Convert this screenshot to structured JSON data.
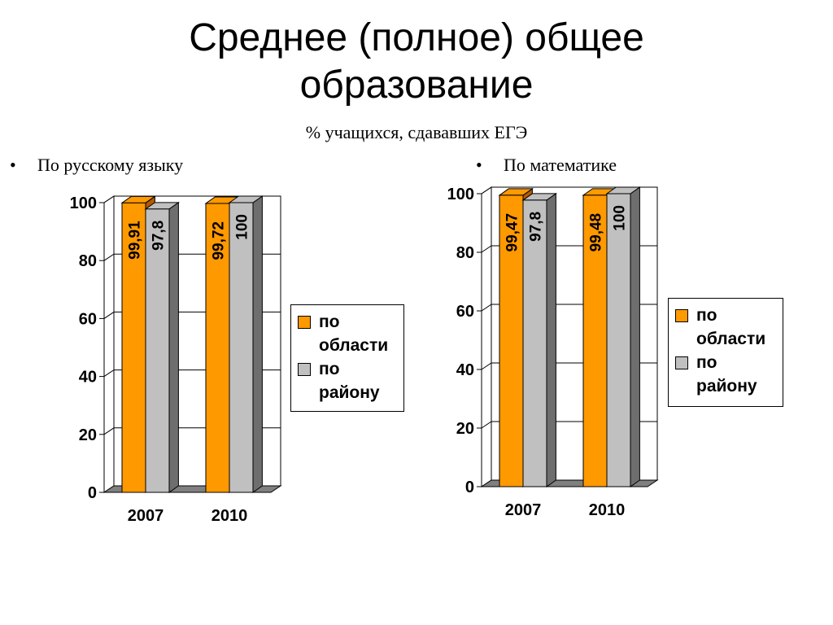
{
  "slide": {
    "title_line1": "Среднее (полное) общее",
    "title_line2": "образование",
    "subtitle": "% учащихся, сдававших ЕГЭ",
    "bullet_char": "•"
  },
  "colors": {
    "series_region": "#ff9900",
    "series_district": "#c0c0c0",
    "side_region": "#b35a00",
    "side_district": "#6e6e6e"
  },
  "chart_data": [
    {
      "type": "bar",
      "title": "По русскому языку",
      "categories": [
        "2007",
        "2010"
      ],
      "series": [
        {
          "name": "по области",
          "values": [
            99.91,
            99.72
          ],
          "labels": [
            "99,91",
            "99,72"
          ]
        },
        {
          "name": "по району",
          "values": [
            97.8,
            100
          ],
          "labels": [
            "97,8",
            "100"
          ]
        }
      ],
      "ylim": [
        0,
        100
      ],
      "yticks": [
        "0",
        "20",
        "40",
        "60",
        "80",
        "100"
      ],
      "grid": true,
      "legend": "right",
      "legend_lines": [
        [
          "по",
          "области"
        ],
        [
          "по",
          "району"
        ]
      ]
    },
    {
      "type": "bar",
      "title": "По математике",
      "categories": [
        "2007",
        "2010"
      ],
      "series": [
        {
          "name": "по области",
          "values": [
            99.47,
            99.48
          ],
          "labels": [
            "99,47",
            "99,48"
          ]
        },
        {
          "name": "по району",
          "values": [
            97.8,
            100
          ],
          "labels": [
            "97,8",
            "100"
          ]
        }
      ],
      "ylim": [
        0,
        100
      ],
      "yticks": [
        "0",
        "20",
        "40",
        "60",
        "80",
        "100"
      ],
      "grid": true,
      "legend": "right",
      "legend_lines": [
        [
          "по",
          "области"
        ],
        [
          "по",
          "району"
        ]
      ]
    }
  ]
}
